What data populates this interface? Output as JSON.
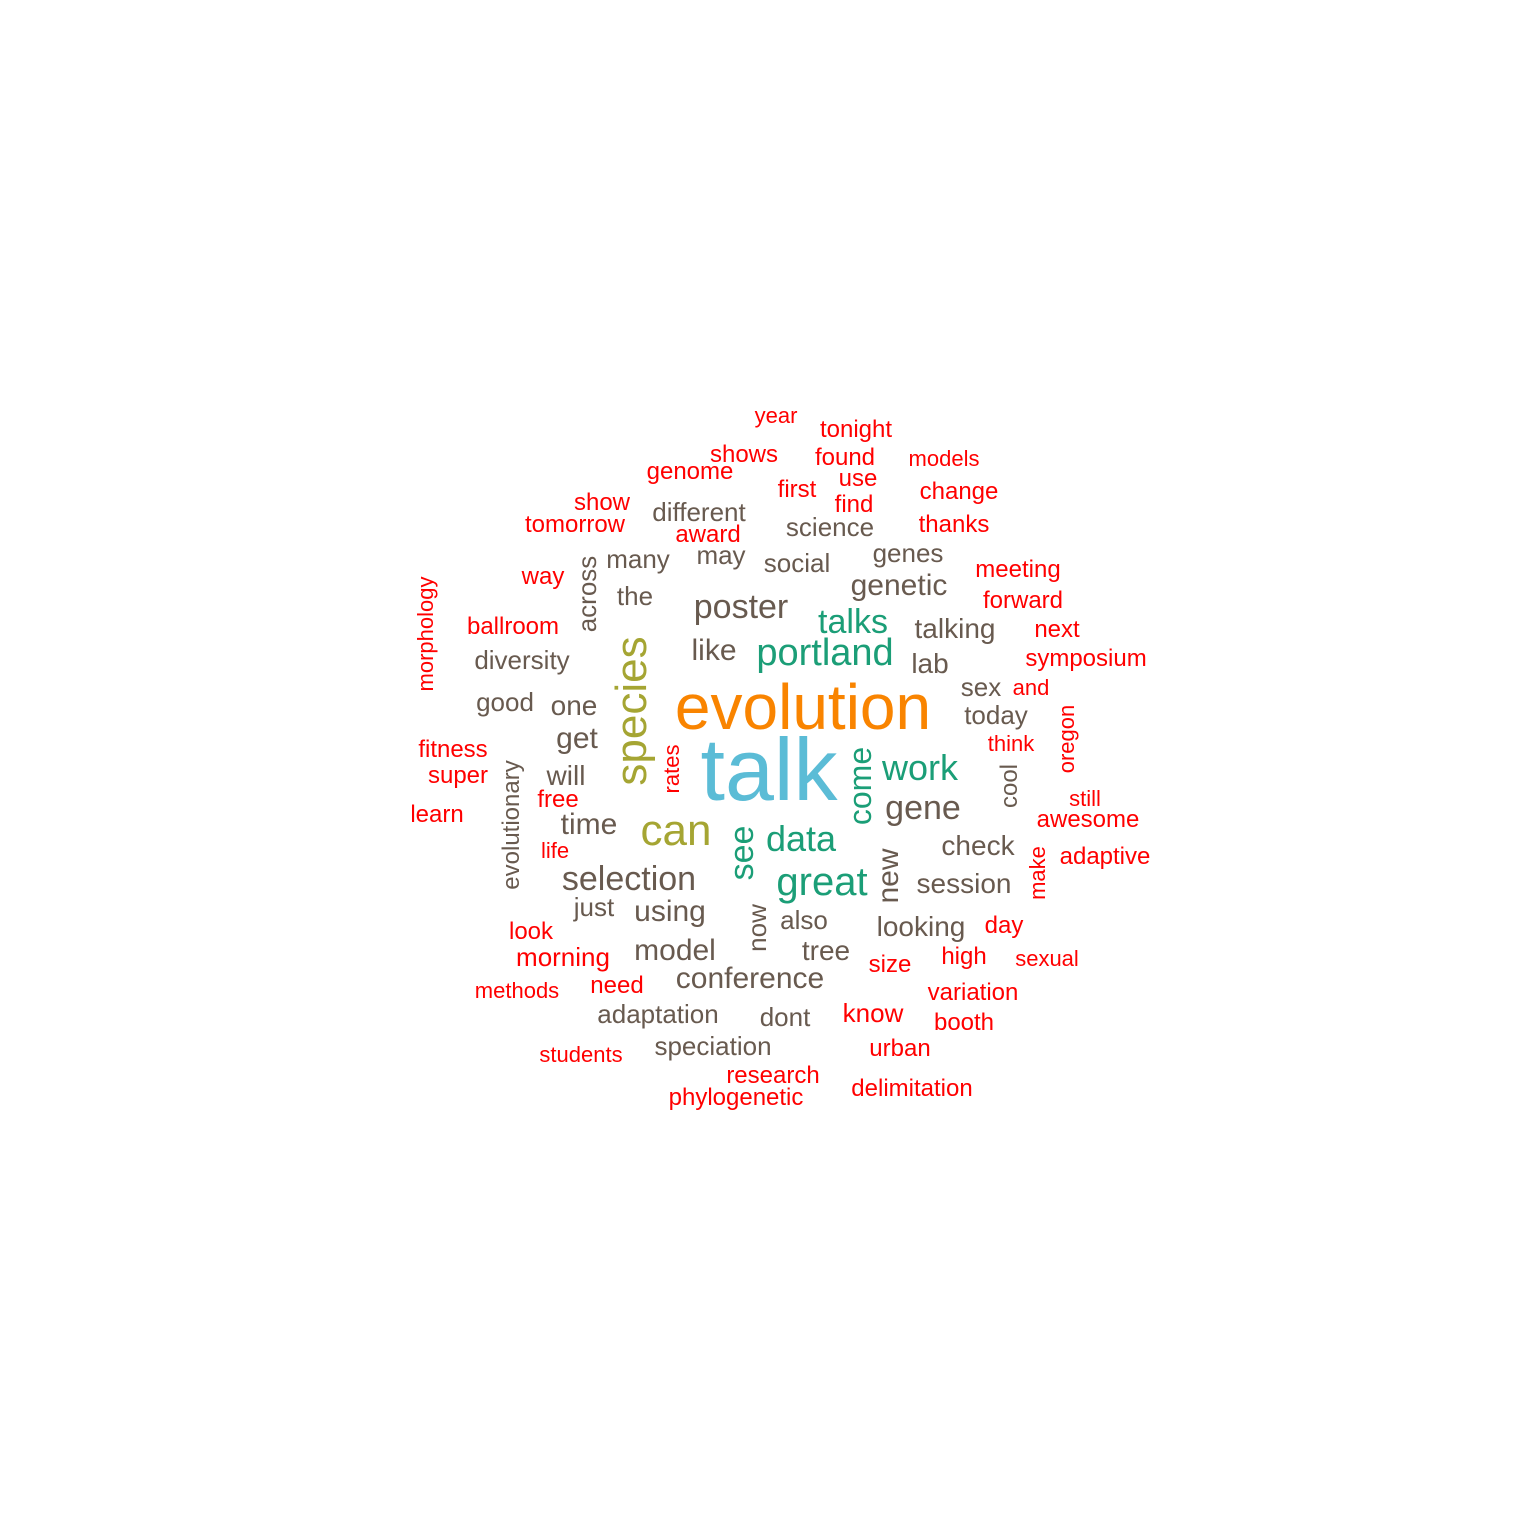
{
  "colors": {
    "talk": "#5bbcd6",
    "evolution": "#f98400",
    "species": "#a5a533",
    "teal": "#1b9e77",
    "gray": "#685a4f",
    "red": "#ff0000"
  },
  "words": [
    {
      "text": "talk",
      "color_key": "talk",
      "rotated": false
    },
    {
      "text": "evolution",
      "color_key": "evolution",
      "rotated": false
    },
    {
      "text": "species",
      "color_key": "species",
      "rotated": true
    },
    {
      "text": "can",
      "color_key": "species",
      "rotated": false
    },
    {
      "text": "portland",
      "color_key": "teal",
      "rotated": false
    },
    {
      "text": "great",
      "color_key": "teal",
      "rotated": false
    },
    {
      "text": "data",
      "color_key": "teal",
      "rotated": false
    },
    {
      "text": "work",
      "color_key": "teal",
      "rotated": false
    },
    {
      "text": "talks",
      "color_key": "teal",
      "rotated": false
    },
    {
      "text": "come",
      "color_key": "teal",
      "rotated": true
    },
    {
      "text": "see",
      "color_key": "teal",
      "rotated": true
    },
    {
      "text": "poster",
      "color_key": "gray",
      "rotated": false
    },
    {
      "text": "selection",
      "color_key": "gray",
      "rotated": false
    },
    {
      "text": "gene",
      "color_key": "gray",
      "rotated": false
    },
    {
      "text": "new",
      "color_key": "gray",
      "rotated": true
    },
    {
      "text": "genetic",
      "color_key": "gray",
      "rotated": false
    },
    {
      "text": "time",
      "color_key": "gray",
      "rotated": false
    },
    {
      "text": "using",
      "color_key": "gray",
      "rotated": false
    },
    {
      "text": "model",
      "color_key": "gray",
      "rotated": false
    },
    {
      "text": "conference",
      "color_key": "gray",
      "rotated": false
    },
    {
      "text": "like",
      "color_key": "gray",
      "rotated": false
    },
    {
      "text": "get",
      "color_key": "gray",
      "rotated": false
    },
    {
      "text": "talking",
      "color_key": "gray",
      "rotated": false
    },
    {
      "text": "session",
      "color_key": "gray",
      "rotated": false
    },
    {
      "text": "check",
      "color_key": "gray",
      "rotated": false
    },
    {
      "text": "looking",
      "color_key": "gray",
      "rotated": false
    },
    {
      "text": "tree",
      "color_key": "gray",
      "rotated": false
    },
    {
      "text": "lab",
      "color_key": "gray",
      "rotated": false
    },
    {
      "text": "one",
      "color_key": "gray",
      "rotated": false
    },
    {
      "text": "will",
      "color_key": "gray",
      "rotated": false
    },
    {
      "text": "science",
      "color_key": "gray",
      "rotated": false
    },
    {
      "text": "social",
      "color_key": "gray",
      "rotated": false
    },
    {
      "text": "different",
      "color_key": "gray",
      "rotated": false
    },
    {
      "text": "many",
      "color_key": "gray",
      "rotated": false
    },
    {
      "text": "diversity",
      "color_key": "gray",
      "rotated": false
    },
    {
      "text": "adaptation",
      "color_key": "gray",
      "rotated": false
    },
    {
      "text": "speciation",
      "color_key": "gray",
      "rotated": false
    },
    {
      "text": "also",
      "color_key": "gray",
      "rotated": false
    },
    {
      "text": "dont",
      "color_key": "gray",
      "rotated": false
    },
    {
      "text": "now",
      "color_key": "gray",
      "rotated": true
    },
    {
      "text": "the",
      "color_key": "gray",
      "rotated": false
    },
    {
      "text": "just",
      "color_key": "gray",
      "rotated": false
    },
    {
      "text": "good",
      "color_key": "gray",
      "rotated": false
    },
    {
      "text": "today",
      "color_key": "gray",
      "rotated": false
    },
    {
      "text": "sex",
      "color_key": "gray",
      "rotated": false
    },
    {
      "text": "genes",
      "color_key": "gray",
      "rotated": false
    },
    {
      "text": "may",
      "color_key": "gray",
      "rotated": false
    },
    {
      "text": "across",
      "color_key": "gray",
      "rotated": true
    },
    {
      "text": "evolutionary",
      "color_key": "gray",
      "rotated": true
    },
    {
      "text": "cool",
      "color_key": "gray",
      "rotated": true
    },
    {
      "text": "year",
      "color_key": "red",
      "rotated": false
    },
    {
      "text": "tonight",
      "color_key": "red",
      "rotated": false
    },
    {
      "text": "shows",
      "color_key": "red",
      "rotated": false
    },
    {
      "text": "found",
      "color_key": "red",
      "rotated": false
    },
    {
      "text": "models",
      "color_key": "red",
      "rotated": false
    },
    {
      "text": "genome",
      "color_key": "red",
      "rotated": false
    },
    {
      "text": "use",
      "color_key": "red",
      "rotated": false
    },
    {
      "text": "first",
      "color_key": "red",
      "rotated": false
    },
    {
      "text": "change",
      "color_key": "red",
      "rotated": false
    },
    {
      "text": "show",
      "color_key": "red",
      "rotated": false
    },
    {
      "text": "find",
      "color_key": "red",
      "rotated": false
    },
    {
      "text": "tomorrow",
      "color_key": "red",
      "rotated": false
    },
    {
      "text": "thanks",
      "color_key": "red",
      "rotated": false
    },
    {
      "text": "award",
      "color_key": "red",
      "rotated": false
    },
    {
      "text": "way",
      "color_key": "red",
      "rotated": false
    },
    {
      "text": "meeting",
      "color_key": "red",
      "rotated": false
    },
    {
      "text": "forward",
      "color_key": "red",
      "rotated": false
    },
    {
      "text": "ballroom",
      "color_key": "red",
      "rotated": false
    },
    {
      "text": "next",
      "color_key": "red",
      "rotated": false
    },
    {
      "text": "symposium",
      "color_key": "red",
      "rotated": false
    },
    {
      "text": "morphology",
      "color_key": "red",
      "rotated": true
    },
    {
      "text": "and",
      "color_key": "red",
      "rotated": false
    },
    {
      "text": "oregon",
      "color_key": "red",
      "rotated": true
    },
    {
      "text": "think",
      "color_key": "red",
      "rotated": false
    },
    {
      "text": "fitness",
      "color_key": "red",
      "rotated": false
    },
    {
      "text": "rates",
      "color_key": "red",
      "rotated": true
    },
    {
      "text": "super",
      "color_key": "red",
      "rotated": false
    },
    {
      "text": "still",
      "color_key": "red",
      "rotated": false
    },
    {
      "text": "free",
      "color_key": "red",
      "rotated": false
    },
    {
      "text": "learn",
      "color_key": "red",
      "rotated": false
    },
    {
      "text": "awesome",
      "color_key": "red",
      "rotated": false
    },
    {
      "text": "life",
      "color_key": "red",
      "rotated": false
    },
    {
      "text": "make",
      "color_key": "red",
      "rotated": true
    },
    {
      "text": "adaptive",
      "color_key": "red",
      "rotated": false
    },
    {
      "text": "look",
      "color_key": "red",
      "rotated": false
    },
    {
      "text": "day",
      "color_key": "red",
      "rotated": false
    },
    {
      "text": "morning",
      "color_key": "red",
      "rotated": false
    },
    {
      "text": "high",
      "color_key": "red",
      "rotated": false
    },
    {
      "text": "sexual",
      "color_key": "red",
      "rotated": false
    },
    {
      "text": "size",
      "color_key": "red",
      "rotated": false
    },
    {
      "text": "need",
      "color_key": "red",
      "rotated": false
    },
    {
      "text": "methods",
      "color_key": "red",
      "rotated": false
    },
    {
      "text": "variation",
      "color_key": "red",
      "rotated": false
    },
    {
      "text": "know",
      "color_key": "red",
      "rotated": false
    },
    {
      "text": "booth",
      "color_key": "red",
      "rotated": false
    },
    {
      "text": "urban",
      "color_key": "red",
      "rotated": false
    },
    {
      "text": "students",
      "color_key": "red",
      "rotated": false
    },
    {
      "text": "research",
      "color_key": "red",
      "rotated": false
    },
    {
      "text": "delimitation",
      "color_key": "red",
      "rotated": false
    },
    {
      "text": "phylogenetic",
      "color_key": "red",
      "rotated": false
    }
  ]
}
